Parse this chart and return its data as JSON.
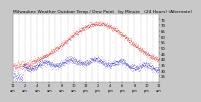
{
  "title": "Milwaukee Weather Outdoor Temp / Dew Point   by Minute   (24 Hours) (Alternate)",
  "title_fontsize": 3.2,
  "bg_color": "#c8c8c8",
  "plot_bg_color": "#ffffff",
  "grid_color": "#aaaaaa",
  "text_color": "#000000",
  "temp_color": "#dd0000",
  "dew_color": "#0000cc",
  "ylim": [
    20,
    80
  ],
  "ytick_values": [
    25,
    30,
    35,
    40,
    45,
    50,
    55,
    60,
    65,
    70,
    75
  ],
  "xlabel_fontsize": 2.5,
  "ylabel_fontsize": 2.8,
  "n_points": 1440
}
